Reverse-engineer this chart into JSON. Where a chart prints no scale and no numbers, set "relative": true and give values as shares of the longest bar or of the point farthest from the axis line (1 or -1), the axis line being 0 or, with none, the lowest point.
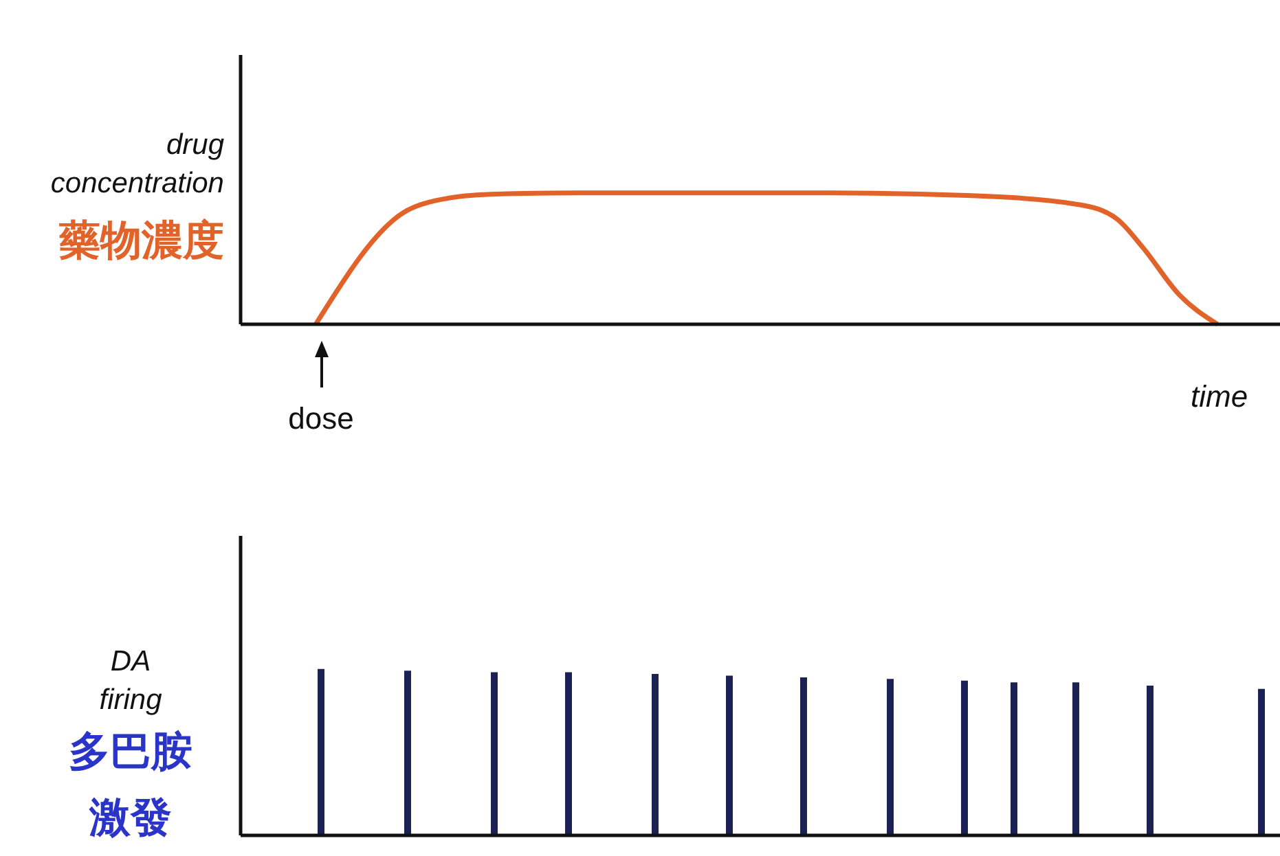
{
  "chart_data": [
    {
      "type": "line",
      "relative": true,
      "xlabel": "time",
      "ylabel": "drug\nconcentration\n藥物濃度",
      "marker": "none",
      "annotations": [
        "dose"
      ],
      "categories": [
        null,
        null,
        null,
        null,
        null,
        null,
        null,
        null,
        null,
        null,
        null,
        null,
        null,
        null,
        null,
        null,
        null,
        null,
        null,
        null,
        null,
        null,
        null,
        null,
        null,
        null,
        null,
        null,
        null,
        null,
        null,
        null,
        null,
        null,
        null,
        null,
        null,
        null,
        null,
        null,
        null,
        null,
        null,
        null,
        null,
        null,
        null,
        null,
        null,
        null,
        null,
        null,
        null,
        null,
        null,
        null,
        null,
        null,
        null,
        null,
        null,
        null,
        null,
        null,
        null,
        null,
        null,
        null,
        null,
        null,
        null,
        null,
        null,
        null,
        null,
        null,
        null,
        null,
        null,
        null,
        null,
        null,
        null,
        null
      ],
      "series": [
        {
          "color": "#e2632a",
          "values": [
            null,
            null,
            null,
            null,
            null,
            null,
            0,
            null,
            null,
            null,
            null,
            null,
            null,
            0.85,
            null,
            null,
            0.95,
            null,
            null,
            null,
            0.99,
            null,
            null,
            null,
            null,
            null,
            null,
            1,
            null,
            null,
            null,
            null,
            null,
            null,
            null,
            null,
            null,
            null,
            null,
            null,
            null,
            null,
            null,
            null,
            null,
            null,
            null,
            1,
            null,
            null,
            null,
            null,
            null,
            null,
            null,
            null,
            null,
            null,
            0.98,
            null,
            null,
            null,
            null,
            null,
            null,
            null,
            null,
            0.91,
            null,
            null,
            0.8,
            null,
            0.59,
            null,
            null,
            0.22,
            null,
            null,
            0,
            null,
            null,
            null,
            null,
            null
          ]
        }
      ]
    },
    {
      "type": "bar",
      "relative": true,
      "ylabel": "DA\nfiring\n多巴胺激發",
      "categories": [
        null,
        null,
        null,
        null,
        null,
        null,
        null,
        null,
        null,
        null,
        null,
        null,
        null,
        null,
        null,
        null,
        null,
        null,
        null,
        null,
        null,
        null,
        null,
        null,
        null,
        null,
        null,
        null,
        null,
        null,
        null,
        null,
        null,
        null,
        null,
        null,
        null,
        null,
        null,
        null,
        null,
        null,
        null,
        null,
        null,
        null,
        null,
        null,
        null,
        null,
        null,
        null,
        null,
        null,
        null,
        null,
        null,
        null,
        null,
        null,
        null,
        null,
        null,
        null,
        null,
        null,
        null,
        null,
        null,
        null,
        null,
        null,
        null,
        null,
        null,
        null,
        null,
        null,
        null,
        null,
        null,
        null,
        null,
        null
      ],
      "series": [
        {
          "color": "#1b2152",
          "values": [
            null,
            null,
            null,
            null,
            null,
            null,
            1,
            null,
            null,
            null,
            null,
            null,
            null,
            0.99,
            null,
            null,
            null,
            null,
            null,
            null,
            0.98,
            null,
            null,
            null,
            null,
            null,
            0.98,
            null,
            null,
            null,
            null,
            null,
            null,
            0.97,
            null,
            null,
            null,
            null,
            null,
            0.96,
            null,
            null,
            null,
            null,
            null,
            0.95,
            null,
            null,
            null,
            null,
            null,
            null,
            0.94,
            null,
            null,
            null,
            null,
            null,
            0.93,
            null,
            null,
            null,
            0.92,
            null,
            null,
            null,
            null,
            0.92,
            null,
            null,
            null,
            null,
            null,
            0.9,
            null,
            null,
            null,
            null,
            null,
            null,
            null,
            null,
            0.88,
            null
          ]
        }
      ]
    }
  ]
}
